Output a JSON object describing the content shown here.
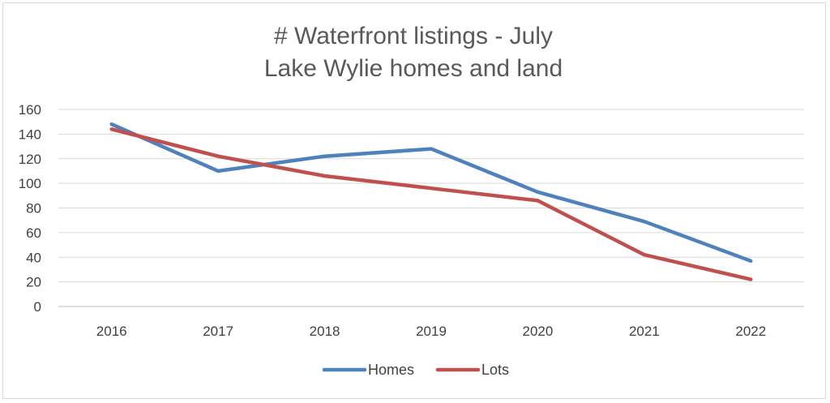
{
  "chart_data": {
    "type": "line",
    "title": "# Waterfront listings - July",
    "subtitle": "Lake Wylie homes and land",
    "categories": [
      "2016",
      "2017",
      "2018",
      "2019",
      "2020",
      "2021",
      "2022"
    ],
    "series": [
      {
        "name": "Homes",
        "color": "#4f81bd",
        "values": [
          148,
          110,
          122,
          128,
          93,
          69,
          37
        ]
      },
      {
        "name": "Lots",
        "color": "#c0504d",
        "values": [
          144,
          122,
          106,
          96,
          86,
          42,
          22
        ]
      }
    ],
    "yticks": [
      "0",
      "20",
      "40",
      "60",
      "80",
      "100",
      "120",
      "140",
      "160"
    ],
    "ylim": [
      0,
      160
    ],
    "grid": true,
    "legend_position": "bottom"
  }
}
